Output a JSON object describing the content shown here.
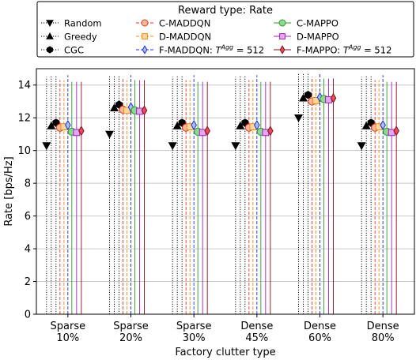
{
  "chart_data": {
    "type": "scatter",
    "legend_title": "Reward type: Rate",
    "legend_placement": "top",
    "xlabel": "Factory clutter type",
    "ylabel": "Rate [bps/Hz]",
    "ylim": [
      0,
      15
    ],
    "yticks": [
      0,
      2,
      4,
      6,
      8,
      10,
      12,
      14
    ],
    "grid": "y-major",
    "categories": [
      [
        "Sparse",
        "10%"
      ],
      [
        "Sparse",
        "20%"
      ],
      [
        "Sparse",
        "30%"
      ],
      [
        "Dense",
        "45%"
      ],
      [
        "Dense",
        "60%"
      ],
      [
        "Dense",
        "80%"
      ]
    ],
    "series": [
      {
        "name": "Random",
        "marker": "triangle-down",
        "color": "#000000",
        "fill": "#000000",
        "line": "dotted",
        "values": [
          10.3,
          11.0,
          10.3,
          10.3,
          12.0,
          10.3
        ],
        "err_high": [
          14.5,
          14.6,
          14.5,
          14.5,
          14.7,
          14.5
        ]
      },
      {
        "name": "Greedy",
        "marker": "triangle-up",
        "color": "#000000",
        "fill": "#000000",
        "line": "dotted",
        "values": [
          11.5,
          12.6,
          11.5,
          11.5,
          13.2,
          11.5
        ],
        "err_high": [
          14.6,
          14.6,
          14.6,
          14.6,
          14.7,
          14.6
        ]
      },
      {
        "name": "CGC",
        "marker": "hexagon",
        "color": "#000000",
        "fill": "#000000",
        "line": "dotted",
        "values": [
          11.7,
          12.8,
          11.7,
          11.7,
          13.4,
          11.7
        ],
        "err_high": [
          14.6,
          14.6,
          14.6,
          14.6,
          14.7,
          14.6
        ]
      },
      {
        "name": "C-MADDQN",
        "marker": "circle",
        "color": "#e03a2a",
        "fill": "#f7b79a",
        "line": "dashed",
        "values": [
          11.4,
          12.5,
          11.4,
          11.4,
          13.0,
          11.4
        ],
        "err_high": [
          14.3,
          14.4,
          14.3,
          14.3,
          14.5,
          14.3
        ]
      },
      {
        "name": "D-MADDQN",
        "marker": "square",
        "color": "#f08c1a",
        "fill": "#fbd79a",
        "line": "dashed",
        "values": [
          11.45,
          12.45,
          11.45,
          11.45,
          13.05,
          11.45
        ],
        "err_high": [
          14.3,
          14.3,
          14.3,
          14.3,
          14.5,
          14.3
        ]
      },
      {
        "name": "F-MADDQN: T^Agg = 512",
        "marker": "thin-diamond",
        "color": "#1f2ad8",
        "fill": "#a9c0f0",
        "line": "dashed",
        "values": [
          11.55,
          12.65,
          11.55,
          11.55,
          13.25,
          11.55
        ],
        "err_high": [
          14.6,
          14.6,
          14.6,
          14.6,
          14.7,
          14.6
        ]
      },
      {
        "name": "C-MAPPO",
        "marker": "circle",
        "color": "#2a9a2a",
        "fill": "#8fd88f",
        "line": "solid",
        "values": [
          11.15,
          12.45,
          11.15,
          11.15,
          13.15,
          11.15
        ],
        "err_high": [
          14.2,
          14.3,
          14.2,
          14.2,
          14.4,
          14.2
        ]
      },
      {
        "name": "D-MAPPO",
        "marker": "square",
        "color": "#a020c0",
        "fill": "#e2a8f0",
        "line": "solid",
        "values": [
          11.1,
          12.4,
          11.1,
          11.1,
          13.1,
          11.1
        ],
        "err_high": [
          14.2,
          14.3,
          14.2,
          14.2,
          14.4,
          14.2
        ]
      },
      {
        "name": "F-MAPPO: T^Agg = 512",
        "marker": "thin-diamond",
        "color": "#8b0a1a",
        "fill": "#e0505a",
        "line": "solid",
        "values": [
          11.2,
          12.45,
          11.2,
          11.2,
          13.2,
          11.2
        ],
        "err_high": [
          14.2,
          14.3,
          14.2,
          14.2,
          14.4,
          14.2
        ]
      }
    ]
  }
}
